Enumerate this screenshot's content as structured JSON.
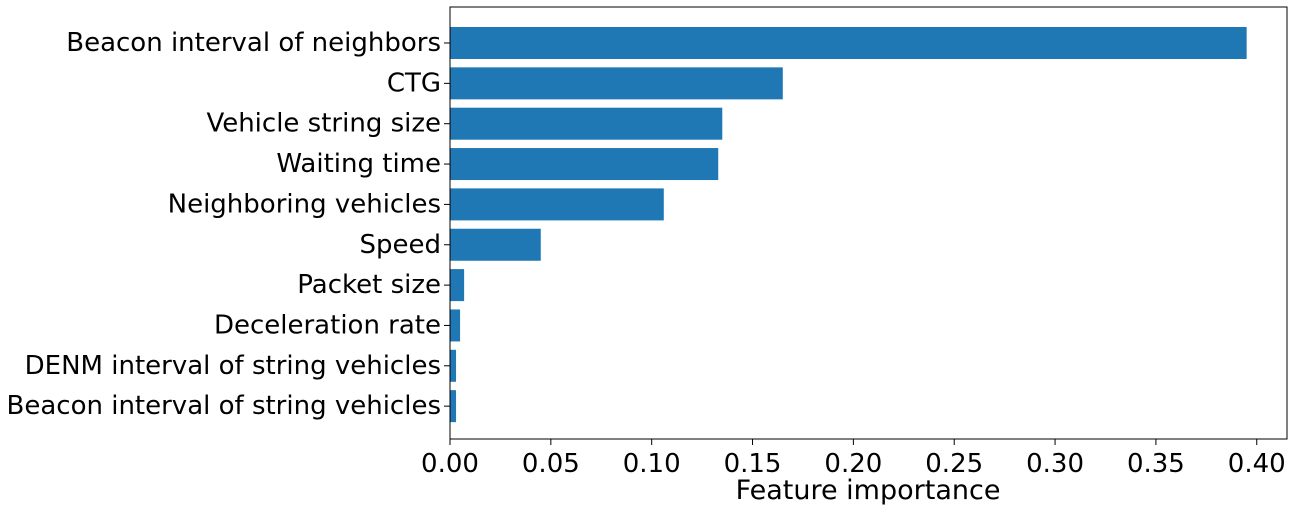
{
  "chart_data": {
    "type": "bar",
    "orientation": "horizontal",
    "categories": [
      "Beacon interval of neighbors",
      "CTG",
      "Vehicle string size",
      "Waiting time",
      "Neighboring vehicles",
      "Speed",
      "Packet size",
      "Deceleration rate",
      "DENM interval of string vehicles",
      "Beacon interval of string vehicles"
    ],
    "values": [
      0.395,
      0.165,
      0.135,
      0.133,
      0.106,
      0.045,
      0.007,
      0.005,
      0.003,
      0.003
    ],
    "xlabel": "Feature importance",
    "ylabel": "",
    "title": "",
    "xlim": [
      0,
      0.415
    ],
    "xticks": [
      "0.00",
      "0.05",
      "0.10",
      "0.15",
      "0.20",
      "0.25",
      "0.30",
      "0.35",
      "0.40"
    ],
    "grid": false,
    "bar_color": "#1f77b4"
  }
}
